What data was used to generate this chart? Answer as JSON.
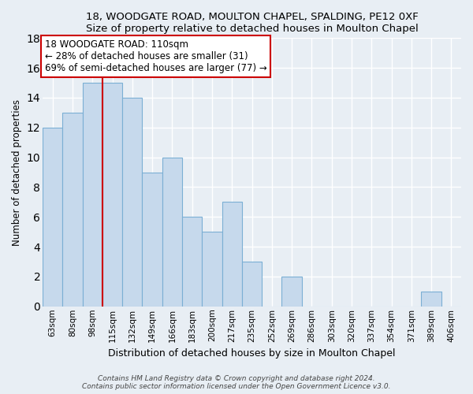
{
  "title": "18, WOODGATE ROAD, MOULTON CHAPEL, SPALDING, PE12 0XF",
  "subtitle": "Size of property relative to detached houses in Moulton Chapel",
  "xlabel": "Distribution of detached houses by size in Moulton Chapel",
  "ylabel": "Number of detached properties",
  "categories": [
    "63sqm",
    "80sqm",
    "98sqm",
    "115sqm",
    "132sqm",
    "149sqm",
    "166sqm",
    "183sqm",
    "200sqm",
    "217sqm",
    "235sqm",
    "252sqm",
    "269sqm",
    "286sqm",
    "303sqm",
    "320sqm",
    "337sqm",
    "354sqm",
    "371sqm",
    "389sqm",
    "406sqm"
  ],
  "values": [
    12,
    13,
    15,
    15,
    14,
    9,
    10,
    6,
    5,
    7,
    3,
    0,
    2,
    0,
    0,
    0,
    0,
    0,
    0,
    1,
    0
  ],
  "bar_color": "#c6d9ec",
  "bar_edge_color": "#7bafd4",
  "ref_line_color": "#cc0000",
  "annotation_line1": "18 WOODGATE ROAD: 110sqm",
  "annotation_line2": "← 28% of detached houses are smaller (31)",
  "annotation_line3": "69% of semi-detached houses are larger (77) →",
  "annotation_box_color": "#ffffff",
  "annotation_box_edge": "#cc0000",
  "ylim": [
    0,
    18
  ],
  "yticks": [
    0,
    2,
    4,
    6,
    8,
    10,
    12,
    14,
    16,
    18
  ],
  "footer": "Contains HM Land Registry data © Crown copyright and database right 2024.\nContains public sector information licensed under the Open Government Licence v3.0.",
  "bg_color": "#e8eef4",
  "grid_color": "#ffffff",
  "ref_bar_index": 3
}
